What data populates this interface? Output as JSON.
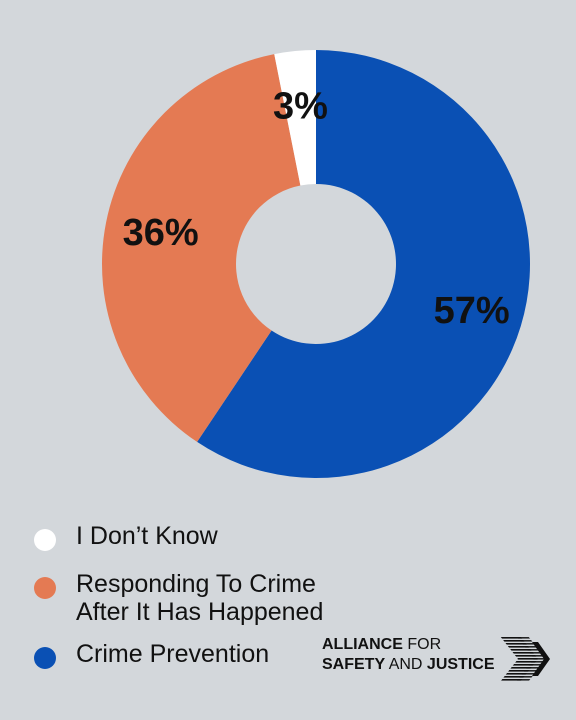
{
  "chart_data": {
    "type": "pie",
    "donut": true,
    "categories": [
      "Crime Prevention",
      "Responding To Crime After It Has Happened",
      "I Don’t Know"
    ],
    "values": [
      57,
      36,
      3
    ],
    "labels": [
      "57%",
      "36%",
      "3%"
    ],
    "colors": [
      "#0a50b4",
      "#e47a53",
      "#ffffff"
    ],
    "title": "",
    "legend_position": "bottom-left"
  },
  "legend": {
    "items": [
      {
        "label": "I Don’t Know",
        "color": "#ffffff"
      },
      {
        "label": "Responding To Crime\nAfter It Has Happened",
        "color": "#e47a53"
      },
      {
        "label": "Crime Prevention",
        "color": "#0a50b4"
      }
    ]
  },
  "logo": {
    "line1_bold": "ALLIANCE",
    "line1_light": "FOR",
    "line2_bold_1": "SAFETY",
    "line2_light": "AND",
    "line2_bold_2": "JUSTICE",
    "mark_icon": "chevron-arrows-icon"
  }
}
